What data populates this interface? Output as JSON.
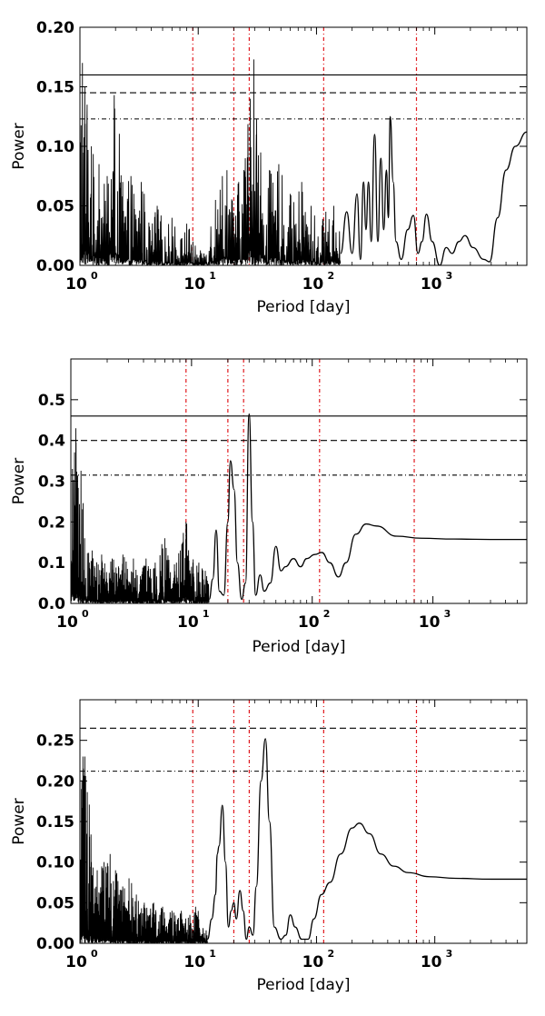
{
  "chart_data": [
    {
      "type": "line",
      "xscale": "log",
      "xlim": [
        1,
        6000
      ],
      "ylim": [
        0,
        0.2
      ],
      "xlabel": "Period [day]",
      "ylabel": "Power",
      "yticks": [
        "0.00",
        "0.05",
        "0.10",
        "0.15",
        "0.20"
      ],
      "ytick_values": [
        0,
        0.05,
        0.1,
        0.15,
        0.2
      ],
      "xticks": [
        {
          "base": "10",
          "exp": "0"
        },
        {
          "base": "10",
          "exp": "1"
        },
        {
          "base": "10",
          "exp": "2"
        },
        {
          "base": "10",
          "exp": "3"
        }
      ],
      "xtick_values": [
        1,
        10,
        100,
        1000
      ],
      "hlines": [
        {
          "value": 0.16,
          "style": "solid"
        },
        {
          "value": 0.145,
          "style": "dashed"
        },
        {
          "value": 0.123,
          "style": "dashdot"
        }
      ],
      "vlines": [
        9,
        20,
        27,
        115,
        700
      ],
      "vline_color": "#e0161b",
      "peaks": [
        {
          "x": 1.05,
          "y": 0.17
        },
        {
          "x": 1.1,
          "y": 0.15
        },
        {
          "x": 1.15,
          "y": 0.135
        },
        {
          "x": 1.25,
          "y": 0.1
        },
        {
          "x": 1.45,
          "y": 0.085
        },
        {
          "x": 1.7,
          "y": 0.075
        },
        {
          "x": 1.95,
          "y": 0.143
        },
        {
          "x": 2.3,
          "y": 0.07
        },
        {
          "x": 2.7,
          "y": 0.075
        },
        {
          "x": 3.3,
          "y": 0.07
        },
        {
          "x": 4.5,
          "y": 0.05
        },
        {
          "x": 6,
          "y": 0.04
        },
        {
          "x": 8,
          "y": 0.035
        },
        {
          "x": 14,
          "y": 0.055
        },
        {
          "x": 16,
          "y": 0.075
        },
        {
          "x": 17.5,
          "y": 0.08
        },
        {
          "x": 22,
          "y": 0.07
        },
        {
          "x": 25,
          "y": 0.09
        },
        {
          "x": 27.5,
          "y": 0.14
        },
        {
          "x": 29.5,
          "y": 0.173
        },
        {
          "x": 31,
          "y": 0.11
        },
        {
          "x": 40,
          "y": 0.08
        },
        {
          "x": 48,
          "y": 0.085
        },
        {
          "x": 60,
          "y": 0.06
        },
        {
          "x": 75,
          "y": 0.07
        },
        {
          "x": 90,
          "y": 0.05
        },
        {
          "x": 120,
          "y": 0.045
        },
        {
          "x": 140,
          "y": 0.05
        }
      ],
      "smooth": [
        [
          160,
          0.01
        ],
        [
          180,
          0.045
        ],
        [
          200,
          0.01
        ],
        [
          220,
          0.06
        ],
        [
          235,
          0.005
        ],
        [
          250,
          0.07
        ],
        [
          262,
          0.03
        ],
        [
          275,
          0.07
        ],
        [
          290,
          0.02
        ],
        [
          310,
          0.11
        ],
        [
          330,
          0.02
        ],
        [
          350,
          0.09
        ],
        [
          370,
          0.03
        ],
        [
          390,
          0.08
        ],
        [
          405,
          0.04
        ],
        [
          420,
          0.125
        ],
        [
          445,
          0.07
        ],
        [
          470,
          0.02
        ],
        [
          520,
          0.005
        ],
        [
          590,
          0.03
        ],
        [
          660,
          0.042
        ],
        [
          720,
          0.01
        ],
        [
          780,
          0.02
        ],
        [
          850,
          0.043
        ],
        [
          950,
          0.02
        ],
        [
          1100,
          0.0
        ],
        [
          1250,
          0.015
        ],
        [
          1400,
          0.01
        ],
        [
          1600,
          0.02
        ],
        [
          1800,
          0.025
        ],
        [
          2100,
          0.015
        ],
        [
          2600,
          0.005
        ],
        [
          2900,
          0.003
        ],
        [
          3400,
          0.04
        ],
        [
          4000,
          0.08
        ],
        [
          4800,
          0.1
        ],
        [
          6000,
          0.112
        ]
      ]
    },
    {
      "type": "line",
      "xscale": "log",
      "xlim": [
        1,
        6000
      ],
      "ylim": [
        0,
        0.6
      ],
      "xlabel": "Period [day]",
      "ylabel": "Power",
      "yticks": [
        "0.0",
        "0.1",
        "0.2",
        "0.3",
        "0.4",
        "0.5"
      ],
      "ytick_values": [
        0,
        0.1,
        0.2,
        0.3,
        0.4,
        0.5
      ],
      "xticks": [
        {
          "base": "10",
          "exp": "0"
        },
        {
          "base": "10",
          "exp": "1"
        },
        {
          "base": "10",
          "exp": "2"
        },
        {
          "base": "10",
          "exp": "3"
        }
      ],
      "xtick_values": [
        1,
        10,
        100,
        1000
      ],
      "hlines": [
        {
          "value": 0.46,
          "style": "solid"
        },
        {
          "value": 0.4,
          "style": "dashed"
        },
        {
          "value": 0.315,
          "style": "dashdot"
        }
      ],
      "vlines": [
        9,
        20,
        27,
        115,
        700
      ],
      "vline_color": "#e0161b",
      "peaks": [
        {
          "x": 1.03,
          "y": 0.33
        },
        {
          "x": 1.06,
          "y": 0.25
        },
        {
          "x": 1.1,
          "y": 0.43
        },
        {
          "x": 1.18,
          "y": 0.2
        },
        {
          "x": 1.3,
          "y": 0.16
        },
        {
          "x": 1.5,
          "y": 0.13
        },
        {
          "x": 1.8,
          "y": 0.12
        },
        {
          "x": 2.2,
          "y": 0.11
        },
        {
          "x": 2.7,
          "y": 0.12
        },
        {
          "x": 3.3,
          "y": 0.11
        },
        {
          "x": 4.2,
          "y": 0.11
        },
        {
          "x": 5,
          "y": 0.1
        },
        {
          "x": 6,
          "y": 0.16
        },
        {
          "x": 7.5,
          "y": 0.1
        },
        {
          "x": 8.5,
          "y": 0.15
        },
        {
          "x": 9,
          "y": 0.2
        },
        {
          "x": 10,
          "y": 0.09
        },
        {
          "x": 11.5,
          "y": 0.1
        },
        {
          "x": 13,
          "y": 0.08
        }
      ],
      "smooth": [
        [
          14,
          0.01
        ],
        [
          15,
          0.06
        ],
        [
          16,
          0.18
        ],
        [
          17,
          0.03
        ],
        [
          18.5,
          0.02
        ],
        [
          20,
          0.2
        ],
        [
          21,
          0.35
        ],
        [
          22.5,
          0.28
        ],
        [
          24,
          0.1
        ],
        [
          26,
          0.01
        ],
        [
          28,
          0.05
        ],
        [
          30,
          0.465
        ],
        [
          32,
          0.2
        ],
        [
          34,
          0.02
        ],
        [
          37,
          0.07
        ],
        [
          40,
          0.03
        ],
        [
          45,
          0.05
        ],
        [
          50,
          0.14
        ],
        [
          55,
          0.08
        ],
        [
          60,
          0.09
        ],
        [
          70,
          0.11
        ],
        [
          80,
          0.09
        ],
        [
          90,
          0.11
        ],
        [
          105,
          0.12
        ],
        [
          120,
          0.125
        ],
        [
          140,
          0.1
        ],
        [
          165,
          0.065
        ],
        [
          190,
          0.1
        ],
        [
          230,
          0.17
        ],
        [
          280,
          0.195
        ],
        [
          340,
          0.19
        ],
        [
          500,
          0.165
        ],
        [
          800,
          0.16
        ],
        [
          1500,
          0.158
        ],
        [
          3000,
          0.157
        ],
        [
          6000,
          0.157
        ]
      ]
    },
    {
      "type": "line",
      "xscale": "log",
      "xlim": [
        1,
        6000
      ],
      "ylim": [
        0,
        0.3
      ],
      "xlabel": "Period [day]",
      "ylabel": "Power",
      "yticks": [
        "0.00",
        "0.05",
        "0.10",
        "0.15",
        "0.20",
        "0.25"
      ],
      "ytick_values": [
        0,
        0.05,
        0.1,
        0.15,
        0.2,
        0.25
      ],
      "xticks": [
        {
          "base": "10",
          "exp": "0"
        },
        {
          "base": "10",
          "exp": "1"
        },
        {
          "base": "10",
          "exp": "2"
        },
        {
          "base": "10",
          "exp": "3"
        }
      ],
      "xtick_values": [
        1,
        10,
        100,
        1000
      ],
      "hlines": [
        {
          "value": 0.265,
          "style": "dashed"
        },
        {
          "value": 0.212,
          "style": "dashdot"
        }
      ],
      "vlines": [
        9,
        20,
        27,
        115,
        700
      ],
      "vline_color": "#e0161b",
      "peaks": [
        {
          "x": 1.03,
          "y": 0.19
        },
        {
          "x": 1.06,
          "y": 0.23
        },
        {
          "x": 1.1,
          "y": 0.23
        },
        {
          "x": 1.15,
          "y": 0.12
        },
        {
          "x": 1.25,
          "y": 0.1
        },
        {
          "x": 1.4,
          "y": 0.09
        },
        {
          "x": 1.6,
          "y": 0.1
        },
        {
          "x": 1.8,
          "y": 0.11
        },
        {
          "x": 2,
          "y": 0.09
        },
        {
          "x": 2.3,
          "y": 0.07
        },
        {
          "x": 2.6,
          "y": 0.08
        },
        {
          "x": 3,
          "y": 0.06
        },
        {
          "x": 3.5,
          "y": 0.05
        },
        {
          "x": 4.2,
          "y": 0.05
        },
        {
          "x": 5,
          "y": 0.045
        },
        {
          "x": 6,
          "y": 0.04
        },
        {
          "x": 7.2,
          "y": 0.04
        },
        {
          "x": 8.5,
          "y": 0.035
        },
        {
          "x": 9.5,
          "y": 0.045
        },
        {
          "x": 11,
          "y": 0.015
        }
      ],
      "smooth": [
        [
          12,
          0.005
        ],
        [
          13,
          0.03
        ],
        [
          14,
          0.06
        ],
        [
          14.5,
          0.11
        ],
        [
          15,
          0.12
        ],
        [
          16,
          0.17
        ],
        [
          17,
          0.1
        ],
        [
          18,
          0.02
        ],
        [
          19,
          0.04
        ],
        [
          20,
          0.05
        ],
        [
          21,
          0.03
        ],
        [
          22.5,
          0.065
        ],
        [
          24,
          0.04
        ],
        [
          25.5,
          0.005
        ],
        [
          27,
          0.02
        ],
        [
          29,
          0.01
        ],
        [
          31,
          0.07
        ],
        [
          34,
          0.2
        ],
        [
          37,
          0.252
        ],
        [
          40,
          0.15
        ],
        [
          44,
          0.02
        ],
        [
          50,
          0.005
        ],
        [
          55,
          0.01
        ],
        [
          60,
          0.035
        ],
        [
          66,
          0.02
        ],
        [
          75,
          0.005
        ],
        [
          85,
          0.005
        ],
        [
          95,
          0.03
        ],
        [
          110,
          0.06
        ],
        [
          130,
          0.075
        ],
        [
          160,
          0.11
        ],
        [
          200,
          0.142
        ],
        [
          230,
          0.148
        ],
        [
          280,
          0.135
        ],
        [
          350,
          0.11
        ],
        [
          450,
          0.095
        ],
        [
          600,
          0.087
        ],
        [
          900,
          0.082
        ],
        [
          1500,
          0.08
        ],
        [
          3000,
          0.079
        ],
        [
          6000,
          0.079
        ]
      ]
    }
  ]
}
